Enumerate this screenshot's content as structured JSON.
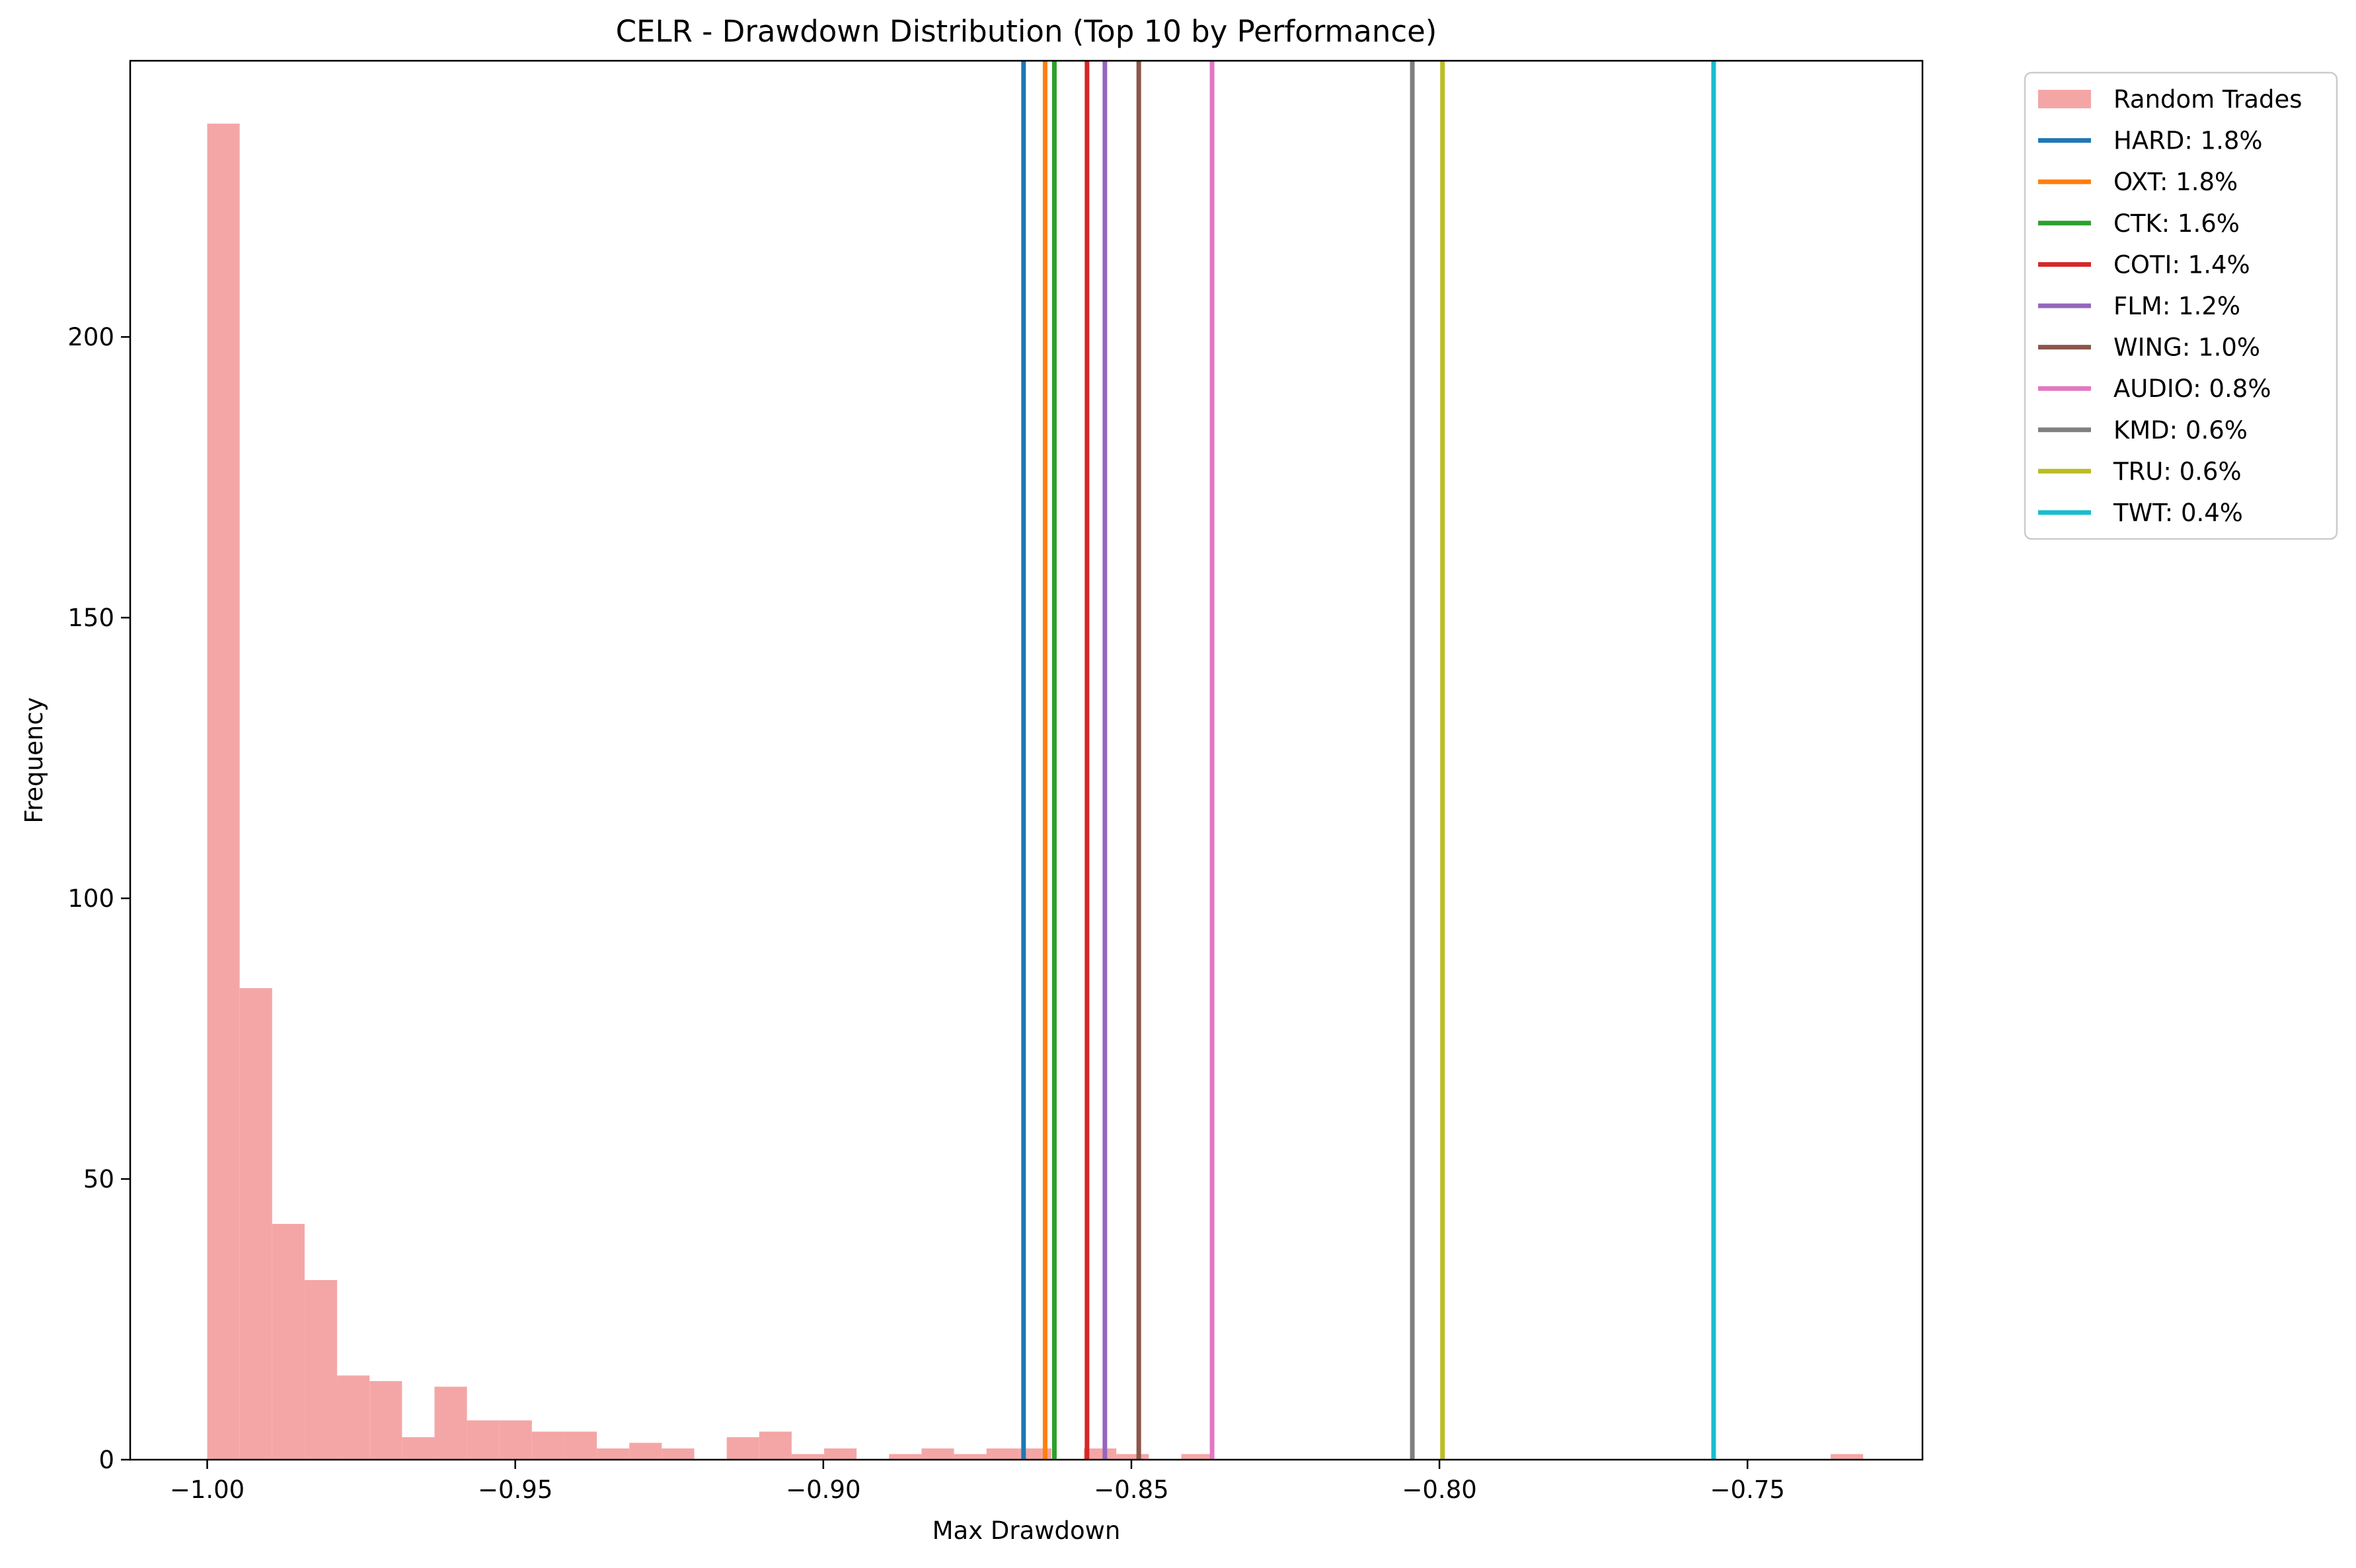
{
  "chart_data": {
    "type": "bar",
    "title": "CELR - Drawdown Distribution (Top 10 by Performance)",
    "xlabel": "Max Drawdown",
    "ylabel": "Frequency",
    "xlim": [
      -1.0125,
      -0.7216
    ],
    "ylim": [
      0,
      249.2
    ],
    "xticks": [
      -1.0,
      -0.95,
      -0.9,
      -0.85,
      -0.8,
      -0.75
    ],
    "xtick_labels": [
      "−1.00",
      "−0.95",
      "−0.90",
      "−0.85",
      "−0.80",
      "−0.75"
    ],
    "yticks": [
      0,
      50,
      100,
      150,
      200
    ],
    "ytick_labels": [
      "0",
      "50",
      "100",
      "150",
      "200"
    ],
    "grid": false,
    "legend_position": "outside-top-right",
    "histogram": {
      "name": "Random Trades",
      "color": "#f4a6a6",
      "bin_start": -1.0,
      "bin_width": 0.00527,
      "counts": [
        238,
        84,
        42,
        32,
        15,
        14,
        4,
        13,
        7,
        7,
        5,
        5,
        2,
        3,
        2,
        0,
        4,
        5,
        1,
        2,
        0,
        1,
        2,
        1,
        2,
        2,
        0,
        2,
        1,
        0,
        1,
        0,
        0,
        0,
        0,
        0,
        0,
        0,
        0,
        0,
        0,
        0,
        0,
        0,
        0,
        0,
        0,
        0,
        0,
        0,
        1,
        0
      ]
    },
    "series": [
      {
        "name": "HARD: 1.8%",
        "x": -0.8675,
        "color": "#1f77b4"
      },
      {
        "name": "OXT: 1.8%",
        "x": -0.864,
        "color": "#ff7f0e"
      },
      {
        "name": "CTK: 1.6%",
        "x": -0.8625,
        "color": "#2ca02c"
      },
      {
        "name": "COTI: 1.4%",
        "x": -0.8572,
        "color": "#d62728"
      },
      {
        "name": "FLM: 1.2%",
        "x": -0.8543,
        "color": "#9467bd"
      },
      {
        "name": "WING: 1.0%",
        "x": -0.8488,
        "color": "#8c564b"
      },
      {
        "name": "AUDIO: 0.8%",
        "x": -0.8369,
        "color": "#e377c2"
      },
      {
        "name": "KMD: 0.6%",
        "x": -0.8044,
        "color": "#7f7f7f"
      },
      {
        "name": "TRU: 0.6%",
        "x": -0.7995,
        "color": "#bcbd22"
      },
      {
        "name": "TWT: 0.4%",
        "x": -0.7555,
        "color": "#17becf"
      }
    ]
  }
}
